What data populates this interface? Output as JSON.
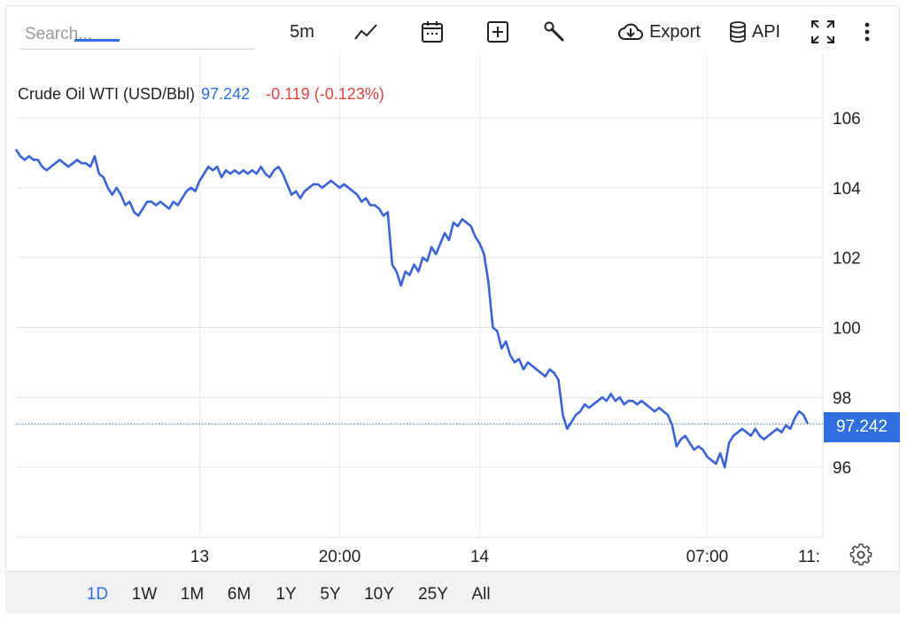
{
  "toolbar": {
    "search_placeholder": "Search...",
    "interval": "5m",
    "export_label": "Export",
    "api_label": "API"
  },
  "legend": {
    "name": "Crude Oil WTI (USD/Bbl)",
    "price": "97.242",
    "change": "-0.119 (-0.123%)",
    "price_color": "#2f6fe0",
    "change_color": "#e0443e"
  },
  "price_badge": "97.242",
  "range_buttons": [
    "1D",
    "1W",
    "1M",
    "6M",
    "1Y",
    "5Y",
    "10Y",
    "25Y",
    "All"
  ],
  "active_range": "1D",
  "chart_data": {
    "type": "line",
    "title": "Crude Oil WTI (USD/Bbl)",
    "xlabel": "",
    "ylabel": "",
    "ylim": [
      94.0,
      107.8
    ],
    "y_ticks": [
      96,
      98,
      100,
      102,
      104,
      106
    ],
    "x_ticks": [
      {
        "label": "13",
        "index": 42
      },
      {
        "label": "20:00",
        "index": 74
      },
      {
        "label": "14",
        "index": 106
      },
      {
        "label": "07:00",
        "index": 158
      },
      {
        "label": "11:",
        "index": 182
      }
    ],
    "current_value": 97.242,
    "grid": true,
    "line_color": "#3a63d6",
    "series": [
      {
        "values": [
          105.1,
          104.9,
          104.8,
          104.9,
          104.8,
          104.8,
          104.6,
          104.5,
          104.6,
          104.7,
          104.8,
          104.7,
          104.6,
          104.7,
          104.8,
          104.7,
          104.7,
          104.6,
          104.9,
          104.4,
          104.3,
          104.0,
          103.8,
          104.0,
          103.8,
          103.5,
          103.6,
          103.3,
          103.2,
          103.4,
          103.6,
          103.6,
          103.5,
          103.6,
          103.5,
          103.4,
          103.6,
          103.5,
          103.7,
          103.9,
          104.0,
          103.9,
          104.2,
          104.4,
          104.6,
          104.5,
          104.6,
          104.3,
          104.5,
          104.4,
          104.5,
          104.4,
          104.5,
          104.4,
          104.5,
          104.4,
          104.6,
          104.4,
          104.3,
          104.5,
          104.6,
          104.4,
          104.1,
          103.8,
          103.9,
          103.7,
          103.9,
          104.0,
          104.1,
          104.1,
          104.0,
          104.1,
          104.2,
          104.1,
          104.0,
          104.1,
          104.0,
          103.9,
          103.8,
          103.6,
          103.7,
          103.5,
          103.5,
          103.4,
          103.2,
          103.3,
          101.8,
          101.6,
          101.2,
          101.6,
          101.5,
          101.8,
          101.6,
          102.0,
          101.9,
          102.3,
          102.1,
          102.4,
          102.7,
          102.5,
          103.0,
          102.9,
          103.1,
          103.0,
          102.9,
          102.6,
          102.4,
          102.1,
          101.3,
          100.0,
          99.9,
          99.4,
          99.6,
          99.2,
          99.0,
          99.1,
          98.8,
          99.0,
          98.9,
          98.8,
          98.7,
          98.6,
          98.8,
          98.7,
          98.5,
          97.5,
          97.1,
          97.3,
          97.5,
          97.6,
          97.8,
          97.7,
          97.8,
          97.9,
          98.0,
          97.9,
          98.1,
          97.9,
          98.0,
          97.8,
          97.9,
          97.9,
          97.8,
          97.9,
          97.8,
          97.7,
          97.6,
          97.7,
          97.6,
          97.5,
          97.2,
          96.6,
          96.8,
          96.9,
          96.7,
          96.5,
          96.6,
          96.5,
          96.3,
          96.2,
          96.1,
          96.4,
          96.0,
          96.7,
          96.9,
          97.0,
          97.1,
          97.0,
          96.9,
          97.1,
          96.9,
          96.8,
          96.9,
          97.0,
          97.1,
          97.0,
          97.2,
          97.1,
          97.4,
          97.6,
          97.5,
          97.242
        ]
      }
    ]
  }
}
